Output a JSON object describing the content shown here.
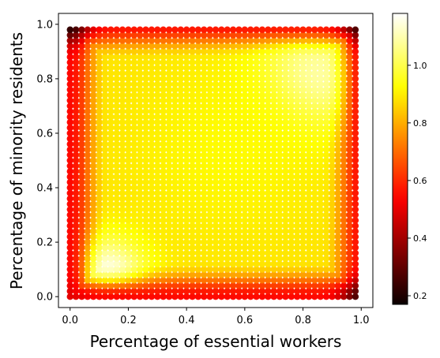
{
  "chart_data": {
    "type": "scatter",
    "title": "",
    "xlabel": "Percentage of essential workers",
    "ylabel": "Percentage of minority residents",
    "xlim": [
      -0.04,
      1.04
    ],
    "ylim": [
      -0.04,
      1.04
    ],
    "xticks": [
      0.0,
      0.2,
      0.4,
      0.6,
      0.8,
      1.0
    ],
    "xtick_labels": [
      "0.0",
      "0.2",
      "0.4",
      "0.6",
      "0.8",
      "1.0"
    ],
    "yticks": [
      0.0,
      0.2,
      0.4,
      0.6,
      0.8,
      1.0
    ],
    "ytick_labels": [
      "0.0",
      "0.2",
      "0.4",
      "0.6",
      "0.8",
      "1.0"
    ],
    "grid": "evenly spaced points, step 0.02 from 0.0 to 0.98 on both axes",
    "grid_x": {
      "start": 0.0,
      "step": 0.02,
      "count": 50
    },
    "grid_y": {
      "start": 0.0,
      "step": 0.02,
      "count": 50
    },
    "colormap": "hot",
    "value_range": [
      0.17,
      1.18
    ],
    "colorbar": {
      "ticks": [
        0.2,
        0.4,
        0.6,
        0.8,
        1.0
      ],
      "tick_labels": [
        "0.2",
        "0.4",
        "0.6",
        "0.8",
        "1.0"
      ],
      "position": "right"
    },
    "value_field": {
      "description": "Estimated color values: ~0.9 in the interior, edge bands ~0.55, corner (0,1) ~0.2, corner (1,1) ~0.2, corner (1,0) ~0.25, corner (0,0) ~0.5",
      "base_interior": 0.88,
      "edge_value": 0.55,
      "corner_values": {
        "top_left": 0.2,
        "top_right": 0.2,
        "bottom_right": 0.25,
        "bottom_left": 0.5
      },
      "hotspots": [
        {
          "x": 0.83,
          "y": 0.8,
          "peak": 1.15,
          "spread": 0.13
        },
        {
          "x": 0.13,
          "y": 0.09,
          "peak": 1.17,
          "spread": 0.09
        },
        {
          "x": 0.55,
          "y": 0.55,
          "peak": 0.92,
          "spread": 0.25
        }
      ]
    }
  }
}
